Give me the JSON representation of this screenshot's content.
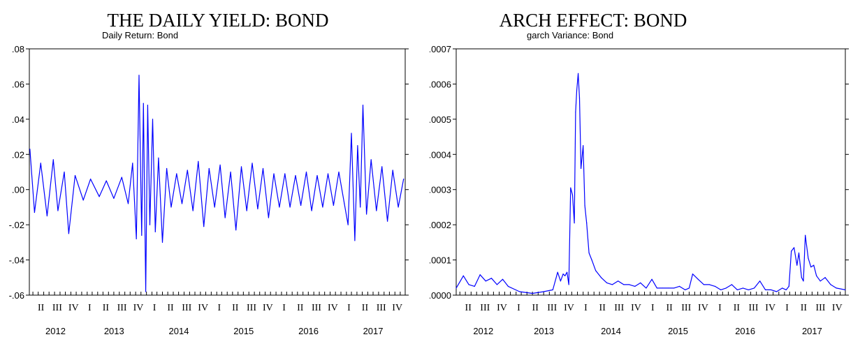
{
  "colors": {
    "series": "#0000ff",
    "axis": "#000000",
    "background": "#ffffff"
  },
  "chart_data": [
    {
      "type": "line",
      "title": "THE DAILY YIELD: BOND",
      "subtitle": "Daily Return: Bond",
      "ylim": [
        -0.06,
        0.08
      ],
      "y_ticks": [
        ".08",
        ".06",
        ".04",
        ".02",
        ".00",
        "-.02",
        "-.04",
        "-.06"
      ],
      "y_tick_values": [
        0.08,
        0.06,
        0.04,
        0.02,
        0.0,
        -0.02,
        -0.04,
        -0.06
      ],
      "quarter_labels": [
        "II",
        "III",
        "IV",
        "I",
        "II",
        "III",
        "IV",
        "I",
        "II",
        "III",
        "IV",
        "I",
        "II",
        "III",
        "IV",
        "I",
        "II",
        "III",
        "IV",
        "I",
        "II",
        "III",
        "IV"
      ],
      "year_labels": [
        "2012",
        "2013",
        "2014",
        "2015",
        "2016",
        "2017"
      ],
      "x_start": "2012-03-12",
      "x_end": "2017-12-29",
      "grid": false,
      "series": [
        {
          "x": [
            "2012-03-15",
            "2012-04-10",
            "2012-05-15",
            "2012-06-20",
            "2012-07-25",
            "2012-08-20",
            "2012-09-25",
            "2012-10-20",
            "2012-11-25",
            "2013-01-10",
            "2013-02-20",
            "2013-04-10",
            "2013-05-20",
            "2013-07-01",
            "2013-08-15",
            "2013-09-20",
            "2013-10-15",
            "2013-11-05",
            "2013-11-20",
            "2013-12-05",
            "2013-12-15",
            "2013-12-28",
            "2014-01-08",
            "2014-01-20",
            "2014-02-05",
            "2014-02-20",
            "2014-03-10",
            "2014-04-01",
            "2014-04-25",
            "2014-05-20",
            "2014-06-20",
            "2014-07-20",
            "2014-08-20",
            "2014-09-20",
            "2014-10-20",
            "2014-11-20",
            "2014-12-20",
            "2015-01-20",
            "2015-02-20",
            "2015-03-20",
            "2015-04-20",
            "2015-05-20",
            "2015-06-20",
            "2015-07-20",
            "2015-08-20",
            "2015-09-20",
            "2015-10-20",
            "2015-11-20",
            "2015-12-20",
            "2016-01-20",
            "2016-02-20",
            "2016-03-20",
            "2016-04-20",
            "2016-05-20",
            "2016-06-20",
            "2016-07-20",
            "2016-08-20",
            "2016-09-20",
            "2016-10-20",
            "2016-11-20",
            "2016-12-20",
            "2017-01-20",
            "2017-02-10",
            "2017-03-01",
            "2017-03-20",
            "2017-04-05",
            "2017-04-20",
            "2017-05-05",
            "2017-05-25",
            "2017-06-20",
            "2017-07-20",
            "2017-08-20",
            "2017-09-20",
            "2017-10-20",
            "2017-11-20",
            "2017-12-20"
          ],
          "values": [
            0.023,
            -0.013,
            0.015,
            -0.015,
            0.017,
            -0.012,
            0.01,
            -0.025,
            0.008,
            -0.006,
            0.006,
            -0.004,
            0.005,
            -0.005,
            0.007,
            -0.008,
            0.015,
            -0.028,
            0.065,
            -0.026,
            0.049,
            -0.058,
            0.048,
            -0.02,
            0.04,
            -0.024,
            0.018,
            -0.03,
            0.012,
            -0.01,
            0.009,
            -0.008,
            0.011,
            -0.012,
            0.016,
            -0.021,
            0.012,
            -0.01,
            0.014,
            -0.016,
            0.01,
            -0.023,
            0.013,
            -0.012,
            0.015,
            -0.011,
            0.012,
            -0.016,
            0.009,
            -0.01,
            0.009,
            -0.01,
            0.008,
            -0.009,
            0.01,
            -0.012,
            0.008,
            -0.01,
            0.009,
            -0.009,
            0.01,
            -0.008,
            -0.02,
            0.032,
            -0.029,
            0.025,
            -0.01,
            0.048,
            -0.014,
            0.017,
            -0.012,
            0.013,
            -0.018,
            0.011,
            -0.01,
            0.006
          ]
        }
      ]
    },
    {
      "type": "line",
      "title": "ARCH EFFECT: BOND",
      "subtitle": "garch Variance: Bond",
      "ylim": [
        0,
        0.0007
      ],
      "y_ticks": [
        ".0007",
        ".0006",
        ".0005",
        ".0004",
        ".0003",
        ".0002",
        ".0001",
        ".0000"
      ],
      "y_tick_values": [
        0.0007,
        0.0006,
        0.0005,
        0.0004,
        0.0003,
        0.0002,
        0.0001,
        0.0
      ],
      "quarter_labels": [
        "II",
        "III",
        "IV",
        "I",
        "II",
        "III",
        "IV",
        "I",
        "II",
        "III",
        "IV",
        "I",
        "II",
        "III",
        "IV",
        "I",
        "II",
        "III",
        "IV",
        "I",
        "II",
        "III",
        "IV"
      ],
      "year_labels": [
        "2012",
        "2013",
        "2014",
        "2015",
        "2016",
        "2017"
      ],
      "x_start": "2012-03-12",
      "x_end": "2017-12-29",
      "grid": false,
      "series": [
        {
          "x": [
            "2012-03-12",
            "2012-04-20",
            "2012-05-20",
            "2012-06-20",
            "2012-07-20",
            "2012-08-20",
            "2012-09-20",
            "2012-10-20",
            "2012-11-20",
            "2012-12-20",
            "2013-02-20",
            "2013-05-01",
            "2013-07-01",
            "2013-08-20",
            "2013-09-15",
            "2013-10-01",
            "2013-10-15",
            "2013-10-25",
            "2013-11-05",
            "2013-11-15",
            "2013-11-25",
            "2013-12-05",
            "2013-12-15",
            "2013-12-22",
            "2013-12-28",
            "2014-01-05",
            "2014-01-12",
            "2014-01-20",
            "2014-02-01",
            "2014-02-10",
            "2014-02-20",
            "2014-03-05",
            "2014-03-20",
            "2014-04-10",
            "2014-05-10",
            "2014-06-10",
            "2014-07-10",
            "2014-08-10",
            "2014-09-10",
            "2014-10-10",
            "2014-11-10",
            "2014-12-10",
            "2015-01-10",
            "2015-02-10",
            "2015-03-10",
            "2015-04-10",
            "2015-05-10",
            "2015-06-10",
            "2015-07-10",
            "2015-08-10",
            "2015-09-01",
            "2015-09-20",
            "2015-10-20",
            "2015-11-20",
            "2015-12-20",
            "2016-01-20",
            "2016-02-20",
            "2016-03-20",
            "2016-04-20",
            "2016-05-20",
            "2016-06-20",
            "2016-07-20",
            "2016-08-20",
            "2016-09-20",
            "2016-10-20",
            "2016-11-20",
            "2016-12-20",
            "2017-01-20",
            "2017-02-10",
            "2017-02-25",
            "2017-03-10",
            "2017-03-25",
            "2017-04-10",
            "2017-04-20",
            "2017-05-05",
            "2017-05-15",
            "2017-05-25",
            "2017-06-10",
            "2017-06-25",
            "2017-07-10",
            "2017-07-25",
            "2017-08-15",
            "2017-09-10",
            "2017-10-10",
            "2017-11-10",
            "2017-12-29"
          ],
          "values": [
            2e-05,
            5.5e-05,
            3e-05,
            2.5e-05,
            5.8e-05,
            4e-05,
            4.8e-05,
            3e-05,
            4.5e-05,
            2.5e-05,
            1e-05,
            5e-06,
            1e-05,
            1.5e-05,
            6.5e-05,
            4e-05,
            6e-05,
            5.5e-05,
            6.5e-05,
            3e-05,
            0.000305,
            0.000285,
            0.000205,
            0.00052,
            0.00058,
            0.00063,
            0.00056,
            0.00036,
            0.000425,
            0.000255,
            0.000205,
            0.00012,
            0.0001,
            7e-05,
            5e-05,
            3.5e-05,
            3e-05,
            4e-05,
            3e-05,
            3e-05,
            2.5e-05,
            3.5e-05,
            2e-05,
            4.5e-05,
            2e-05,
            2e-05,
            2e-05,
            2e-05,
            2.5e-05,
            1.5e-05,
            2e-05,
            6e-05,
            4.5e-05,
            3e-05,
            3e-05,
            2.5e-05,
            1.5e-05,
            2e-05,
            3e-05,
            1.5e-05,
            2e-05,
            1.5e-05,
            2e-05,
            4e-05,
            1.5e-05,
            1.5e-05,
            1e-05,
            2e-05,
            1.5e-05,
            2.5e-05,
            0.000125,
            0.000135,
            8.5e-05,
            0.00012,
            5e-05,
            4e-05,
            0.00017,
            0.000105,
            8e-05,
            8.5e-05,
            5.5e-05,
            4e-05,
            5e-05,
            3e-05,
            2e-05,
            1.5e-05
          ]
        }
      ]
    }
  ]
}
